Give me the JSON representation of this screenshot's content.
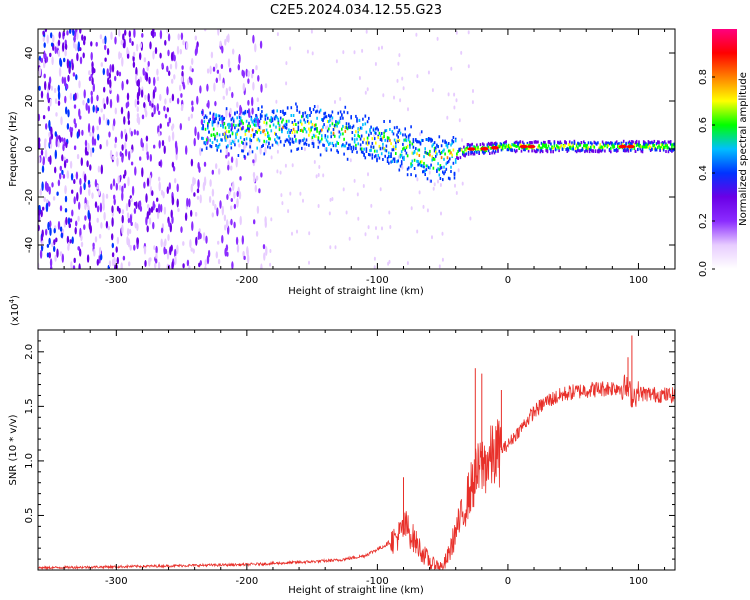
{
  "title": "C2E5.2024.034.12.55.G23",
  "chart_data": [
    {
      "type": "heatmap",
      "xlabel": "Height of straight line (km)",
      "ylabel": "Frequency (Hz)",
      "xlim": [
        -360,
        128
      ],
      "ylim": [
        -50,
        50
      ],
      "xticks": [
        -300,
        -200,
        -100,
        0,
        100
      ],
      "yticks": [
        -40,
        -20,
        0,
        20,
        40
      ],
      "colorbar": {
        "label": "Normalized spectral amplitude",
        "range": [
          0.0,
          1.0
        ],
        "ticks": [
          "0.0",
          "0.2",
          "0.4",
          "0.6",
          "0.8"
        ],
        "tick_values": [
          0.0,
          0.2,
          0.4,
          0.6,
          0.8
        ],
        "colors": [
          "#ffffff",
          "#e7ccff",
          "#8b2cff",
          "#6a00e6",
          "#0033ff",
          "#00bfff",
          "#00ff00",
          "#ffff00",
          "#ff8000",
          "#ff0000",
          "#ff007f"
        ]
      },
      "ridge_frequency_hz": {
        "x": [
          -235,
          -200,
          -170,
          -140,
          -120,
          -100,
          -80,
          -70,
          -60,
          -50,
          -40,
          -30,
          -20,
          0,
          20,
          60,
          90,
          128
        ],
        "y": [
          7,
          7,
          9,
          8,
          6,
          3,
          0,
          -2,
          -4,
          -4,
          -2,
          0,
          0,
          1,
          1,
          1,
          1,
          1
        ]
      },
      "noise_region_x": [
        -360,
        -185
      ]
    },
    {
      "type": "line",
      "xlabel": "Height of straight line (km)",
      "ylabel": "SNR (10 * v/v)",
      "scale_label": "(x10",
      "scale_exp": "4",
      "scale_close": ")",
      "xlim": [
        -360,
        128
      ],
      "ylim": [
        0,
        2.2
      ],
      "xticks": [
        -300,
        -200,
        -100,
        0,
        100
      ],
      "yticks": [
        "0.5",
        "1.0",
        "1.5",
        "2.0"
      ],
      "ytick_values": [
        0.5,
        1.0,
        1.5,
        2.0
      ],
      "color": "#e8302a",
      "series": [
        {
          "name": "SNR",
          "x": [
            -360,
            -300,
            -250,
            -200,
            -160,
            -130,
            -110,
            -95,
            -85,
            -78,
            -72,
            -65,
            -58,
            -50,
            -45,
            -40,
            -35,
            -30,
            -25,
            -20,
            -15,
            -10,
            -5,
            0,
            10,
            20,
            30,
            45,
            60,
            80,
            90,
            95,
            100,
            110,
            128
          ],
          "y": [
            0.02,
            0.03,
            0.04,
            0.05,
            0.07,
            0.09,
            0.13,
            0.22,
            0.3,
            0.4,
            0.28,
            0.15,
            0.05,
            0.02,
            0.15,
            0.35,
            0.5,
            0.7,
            0.85,
            0.95,
            1.0,
            1.05,
            1.1,
            1.15,
            1.3,
            1.45,
            1.55,
            1.62,
            1.65,
            1.67,
            1.68,
            1.6,
            1.62,
            1.61,
            1.6
          ]
        }
      ],
      "spikes": [
        {
          "x": -80,
          "y": 0.85
        },
        {
          "x": -25,
          "y": 1.85
        },
        {
          "x": -20,
          "y": 1.8
        },
        {
          "x": -5,
          "y": 1.65
        },
        {
          "x": 95,
          "y": 2.15
        },
        {
          "x": 92,
          "y": 1.95
        }
      ]
    }
  ]
}
